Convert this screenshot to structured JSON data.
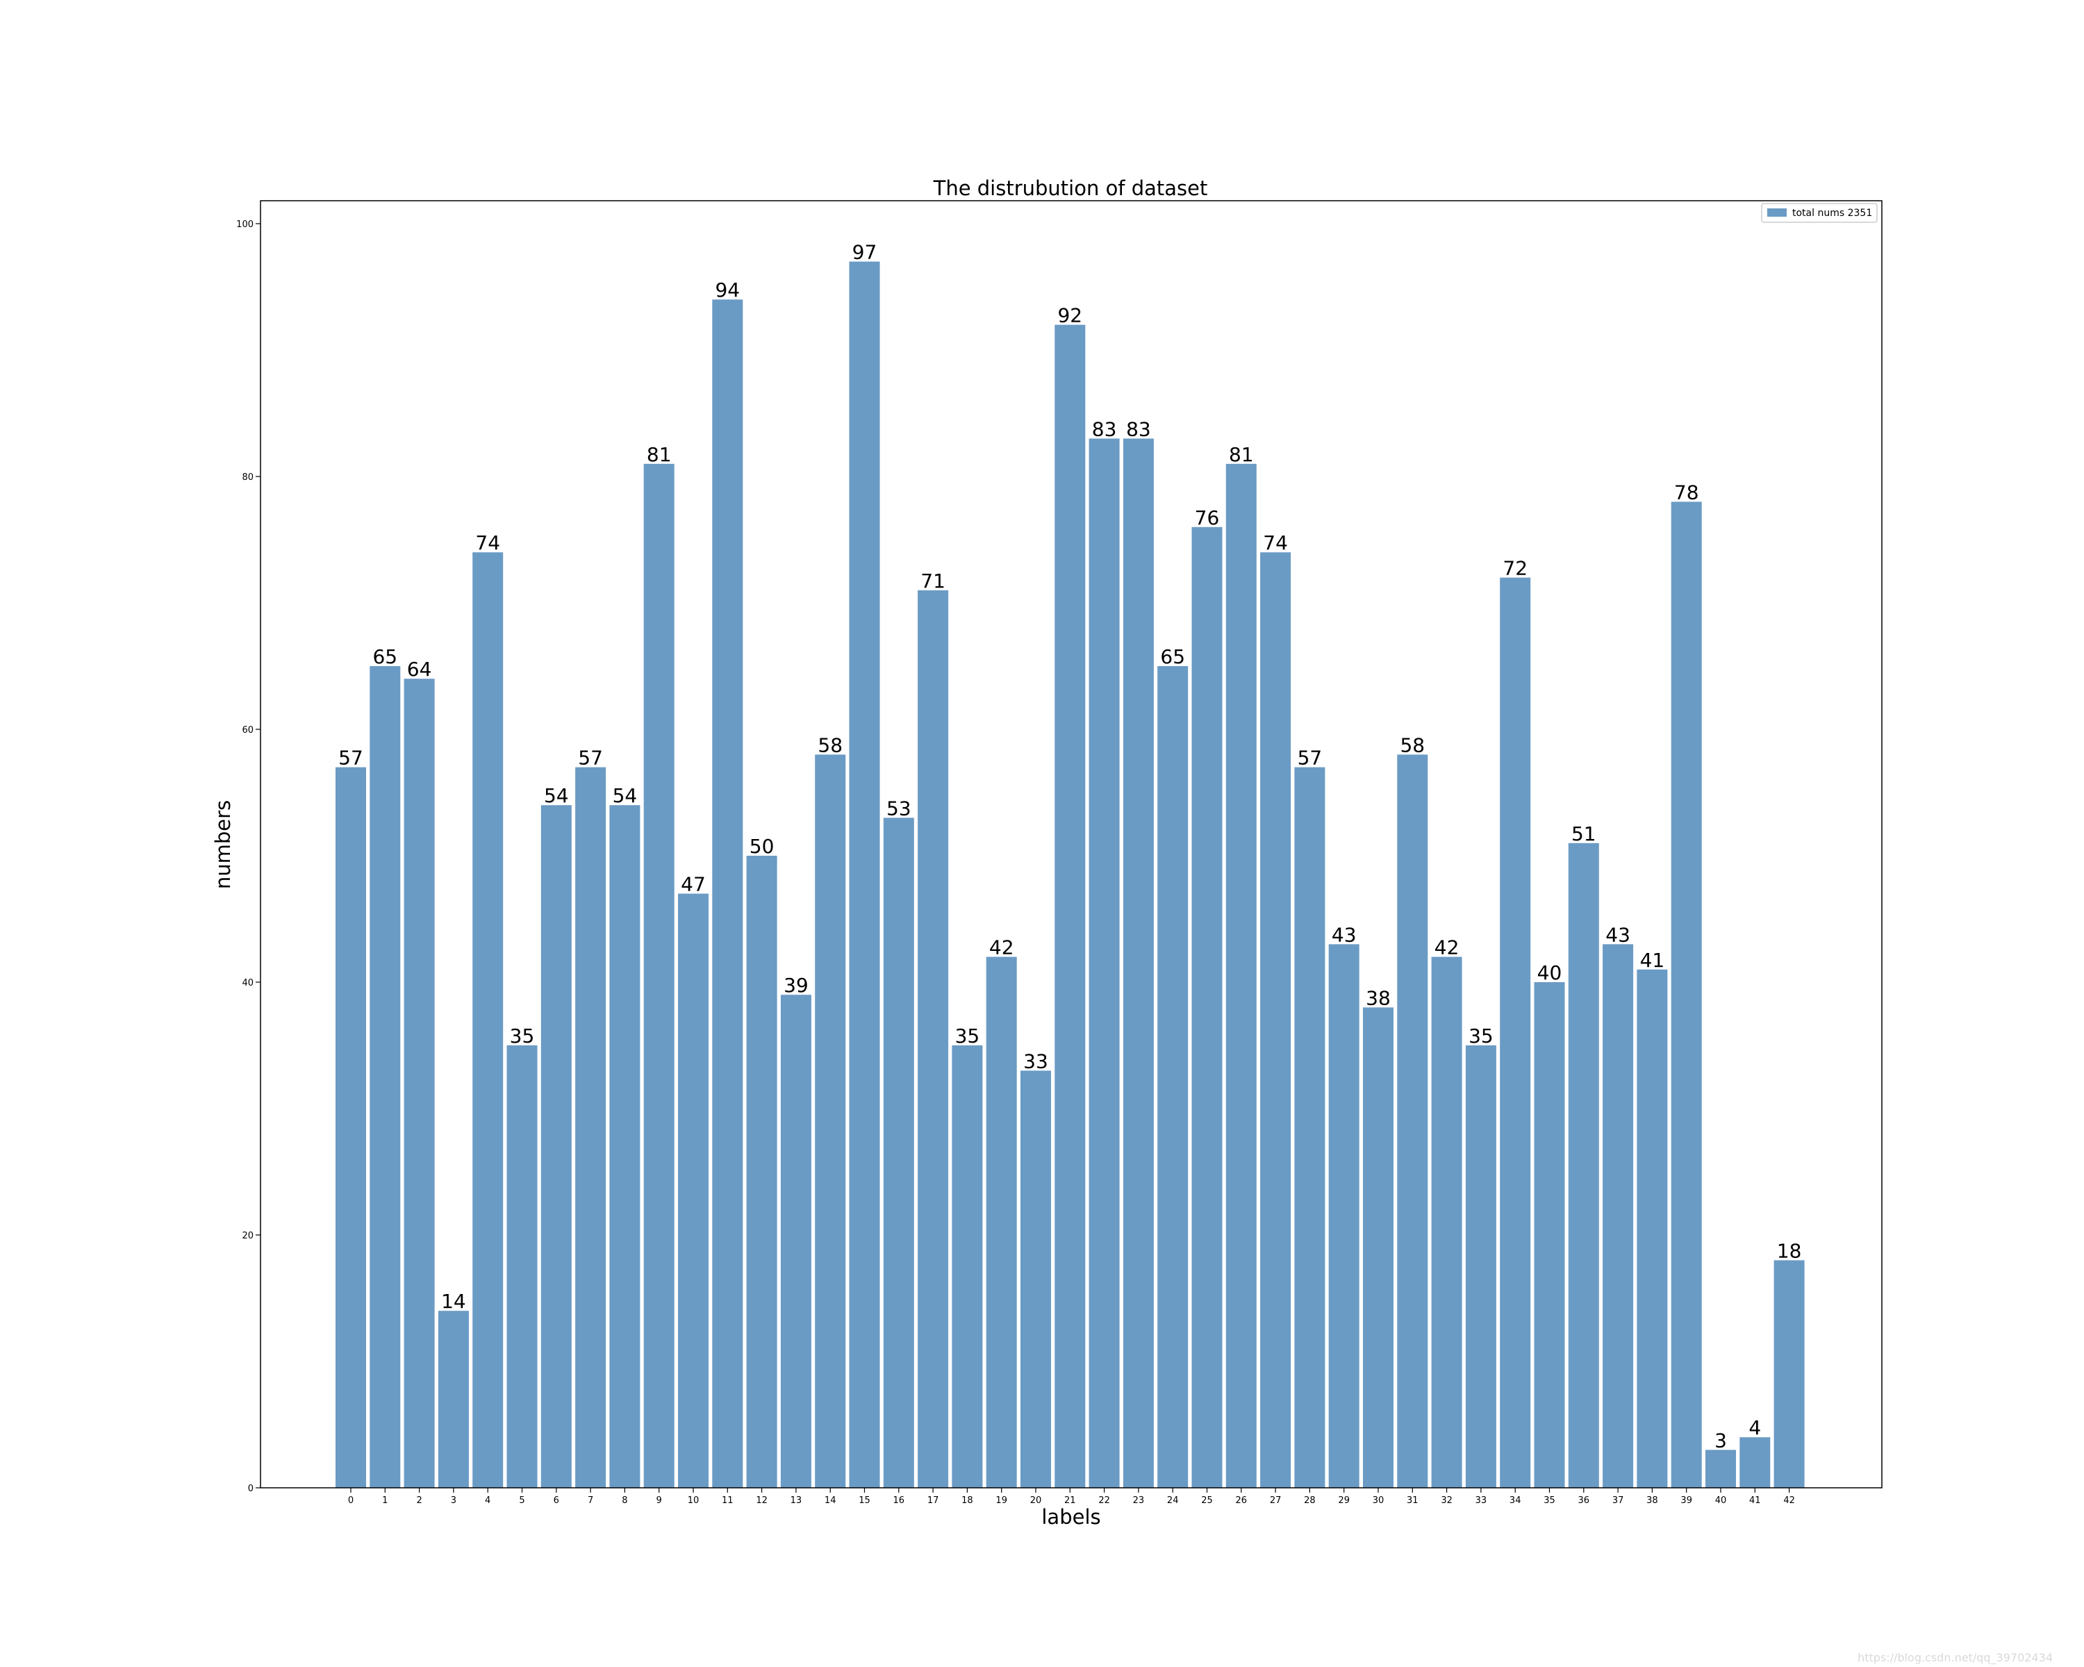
{
  "chart_data": {
    "type": "bar",
    "title": "The distrubution of dataset",
    "xlabel": "labels",
    "ylabel": "numbers",
    "categories": [
      "0",
      "1",
      "2",
      "3",
      "4",
      "5",
      "6",
      "7",
      "8",
      "9",
      "10",
      "11",
      "12",
      "13",
      "14",
      "15",
      "16",
      "17",
      "18",
      "19",
      "20",
      "21",
      "22",
      "23",
      "24",
      "25",
      "26",
      "27",
      "28",
      "29",
      "30",
      "31",
      "32",
      "33",
      "34",
      "35",
      "36",
      "37",
      "38",
      "39",
      "40",
      "41",
      "42"
    ],
    "series": [
      {
        "name": "total nums 2351",
        "color": "#6a9bc5",
        "values": [
          57,
          65,
          64,
          14,
          74,
          35,
          54,
          57,
          54,
          81,
          47,
          94,
          50,
          39,
          58,
          97,
          53,
          71,
          35,
          42,
          33,
          92,
          83,
          83,
          65,
          76,
          81,
          74,
          57,
          43,
          38,
          58,
          42,
          35,
          72,
          40,
          51,
          43,
          41,
          78,
          3,
          4,
          18
        ]
      }
    ],
    "ylim": [
      0,
      102
    ],
    "yticks": [
      0,
      20,
      40,
      60,
      80,
      100
    ],
    "data_labels": true,
    "grid": false,
    "legend_position": "top-right"
  },
  "watermark": "https://blog.csdn.net/qq_39702434"
}
